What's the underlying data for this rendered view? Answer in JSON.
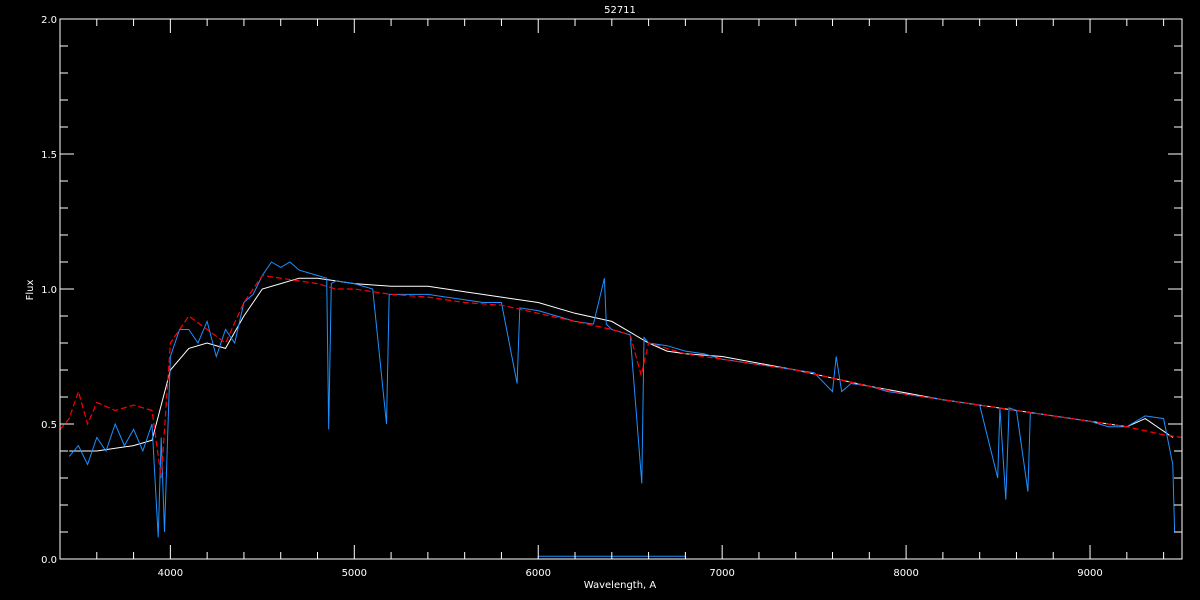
{
  "chart_data": {
    "type": "line",
    "title": "52711",
    "xlabel": "Wavelength, A",
    "ylabel": "Flux",
    "xlim": [
      3400,
      9500
    ],
    "ylim": [
      0,
      2.0
    ],
    "x_ticks": [
      4000,
      5000,
      6000,
      7000,
      8000,
      9000
    ],
    "x_tick_labels": [
      "4000",
      "5000",
      "6000",
      "7000",
      "8000",
      "9000"
    ],
    "y_ticks": [
      0,
      0.5,
      1.0,
      1.5,
      2.0
    ],
    "y_tick_labels": [
      "0.0",
      "0.5",
      "1.0",
      "1.5",
      "2.0"
    ],
    "grid": false,
    "background": "#000000",
    "series": [
      {
        "color": "#ffffff",
        "points": [
          [
            3450,
            0.4
          ],
          [
            3600,
            0.4
          ],
          [
            3800,
            0.42
          ],
          [
            3900,
            0.44
          ],
          [
            4000,
            0.7
          ],
          [
            4100,
            0.78
          ],
          [
            4200,
            0.8
          ],
          [
            4300,
            0.78
          ],
          [
            4400,
            0.9
          ],
          [
            4500,
            1.0
          ],
          [
            4600,
            1.02
          ],
          [
            4700,
            1.04
          ],
          [
            4800,
            1.04
          ],
          [
            4900,
            1.03
          ],
          [
            5000,
            1.02
          ],
          [
            5200,
            1.01
          ],
          [
            5400,
            1.01
          ],
          [
            5600,
            0.99
          ],
          [
            5800,
            0.97
          ],
          [
            6000,
            0.95
          ],
          [
            6200,
            0.91
          ],
          [
            6400,
            0.88
          ],
          [
            6600,
            0.8
          ],
          [
            6700,
            0.77
          ],
          [
            6800,
            0.76
          ],
          [
            7000,
            0.75
          ],
          [
            7400,
            0.7
          ],
          [
            7800,
            0.64
          ],
          [
            8200,
            0.59
          ],
          [
            8600,
            0.55
          ],
          [
            9000,
            0.51
          ],
          [
            9200,
            0.49
          ],
          [
            9300,
            0.52
          ],
          [
            9450,
            0.45
          ]
        ]
      },
      {
        "color": "#1e90ff",
        "points": [
          [
            3450,
            0.38
          ],
          [
            3500,
            0.42
          ],
          [
            3550,
            0.35
          ],
          [
            3600,
            0.45
          ],
          [
            3650,
            0.4
          ],
          [
            3700,
            0.5
          ],
          [
            3750,
            0.42
          ],
          [
            3800,
            0.48
          ],
          [
            3850,
            0.4
          ],
          [
            3900,
            0.5
          ],
          [
            3934,
            0.08
          ],
          [
            3950,
            0.45
          ],
          [
            3968,
            0.1
          ],
          [
            3990,
            0.55
          ],
          [
            4000,
            0.75
          ],
          [
            4050,
            0.85
          ],
          [
            4100,
            0.85
          ],
          [
            4150,
            0.8
          ],
          [
            4200,
            0.88
          ],
          [
            4250,
            0.75
          ],
          [
            4300,
            0.85
          ],
          [
            4350,
            0.8
          ],
          [
            4400,
            0.95
          ],
          [
            4450,
            0.98
          ],
          [
            4500,
            1.05
          ],
          [
            4550,
            1.1
          ],
          [
            4600,
            1.08
          ],
          [
            4650,
            1.1
          ],
          [
            4700,
            1.07
          ],
          [
            4800,
            1.05
          ],
          [
            4850,
            1.04
          ],
          [
            4861,
            0.48
          ],
          [
            4875,
            1.02
          ],
          [
            4900,
            1.03
          ],
          [
            5000,
            1.02
          ],
          [
            5100,
            1.0
          ],
          [
            5175,
            0.5
          ],
          [
            5190,
            0.98
          ],
          [
            5300,
            0.98
          ],
          [
            5400,
            0.98
          ],
          [
            5500,
            0.97
          ],
          [
            5600,
            0.96
          ],
          [
            5700,
            0.95
          ],
          [
            5800,
            0.95
          ],
          [
            5885,
            0.65
          ],
          [
            5900,
            0.93
          ],
          [
            6000,
            0.92
          ],
          [
            6100,
            0.9
          ],
          [
            6200,
            0.88
          ],
          [
            6300,
            0.87
          ],
          [
            6360,
            1.04
          ],
          [
            6370,
            0.87
          ],
          [
            6400,
            0.85
          ],
          [
            6500,
            0.83
          ],
          [
            6563,
            0.28
          ],
          [
            6575,
            0.82
          ],
          [
            6600,
            0.8
          ],
          [
            6700,
            0.79
          ],
          [
            6800,
            0.77
          ],
          [
            6900,
            0.76
          ],
          [
            7000,
            0.74
          ],
          [
            7100,
            0.73
          ],
          [
            7200,
            0.72
          ],
          [
            7300,
            0.71
          ],
          [
            7400,
            0.7
          ],
          [
            7500,
            0.69
          ],
          [
            7600,
            0.62
          ],
          [
            7620,
            0.75
          ],
          [
            7650,
            0.62
          ],
          [
            7700,
            0.65
          ],
          [
            7800,
            0.64
          ],
          [
            7900,
            0.62
          ],
          [
            8000,
            0.61
          ],
          [
            8100,
            0.6
          ],
          [
            8200,
            0.59
          ],
          [
            8300,
            0.58
          ],
          [
            8400,
            0.57
          ],
          [
            8498,
            0.3
          ],
          [
            8510,
            0.56
          ],
          [
            8542,
            0.22
          ],
          [
            8560,
            0.56
          ],
          [
            8600,
            0.55
          ],
          [
            8662,
            0.25
          ],
          [
            8675,
            0.54
          ],
          [
            8700,
            0.54
          ],
          [
            8800,
            0.53
          ],
          [
            8900,
            0.52
          ],
          [
            9000,
            0.51
          ],
          [
            9100,
            0.49
          ],
          [
            9200,
            0.49
          ],
          [
            9300,
            0.53
          ],
          [
            9400,
            0.52
          ],
          [
            9450,
            0.35
          ],
          [
            9460,
            0.1
          ]
        ]
      },
      {
        "color": "#ff0000",
        "points": [
          [
            3400,
            0.48
          ],
          [
            3450,
            0.52
          ],
          [
            3500,
            0.62
          ],
          [
            3550,
            0.5
          ],
          [
            3600,
            0.58
          ],
          [
            3700,
            0.55
          ],
          [
            3800,
            0.57
          ],
          [
            3900,
            0.55
          ],
          [
            3950,
            0.3
          ],
          [
            4000,
            0.8
          ],
          [
            4100,
            0.9
          ],
          [
            4200,
            0.85
          ],
          [
            4300,
            0.8
          ],
          [
            4400,
            0.95
          ],
          [
            4500,
            1.05
          ],
          [
            4600,
            1.04
          ],
          [
            4700,
            1.03
          ],
          [
            4800,
            1.02
          ],
          [
            4900,
            1.0
          ],
          [
            5000,
            1.0
          ],
          [
            5200,
            0.98
          ],
          [
            5400,
            0.97
          ],
          [
            5600,
            0.95
          ],
          [
            5800,
            0.94
          ],
          [
            6000,
            0.91
          ],
          [
            6200,
            0.88
          ],
          [
            6400,
            0.85
          ],
          [
            6500,
            0.83
          ],
          [
            6560,
            0.68
          ],
          [
            6600,
            0.8
          ],
          [
            6800,
            0.76
          ],
          [
            7000,
            0.74
          ],
          [
            7200,
            0.72
          ],
          [
            7400,
            0.7
          ],
          [
            7600,
            0.67
          ],
          [
            7800,
            0.64
          ],
          [
            8000,
            0.61
          ],
          [
            8200,
            0.59
          ],
          [
            8400,
            0.57
          ],
          [
            8600,
            0.55
          ],
          [
            8800,
            0.53
          ],
          [
            9000,
            0.51
          ],
          [
            9200,
            0.49
          ],
          [
            9400,
            0.46
          ],
          [
            9500,
            0.45
          ]
        ]
      },
      {
        "color": "#1e90ff",
        "points": [
          [
            3400,
            0.0
          ],
          [
            6000,
            0.0
          ],
          [
            6000,
            0.01
          ],
          [
            6800,
            0.01
          ],
          [
            6800,
            0.0
          ],
          [
            9500,
            0.0
          ]
        ]
      }
    ]
  }
}
